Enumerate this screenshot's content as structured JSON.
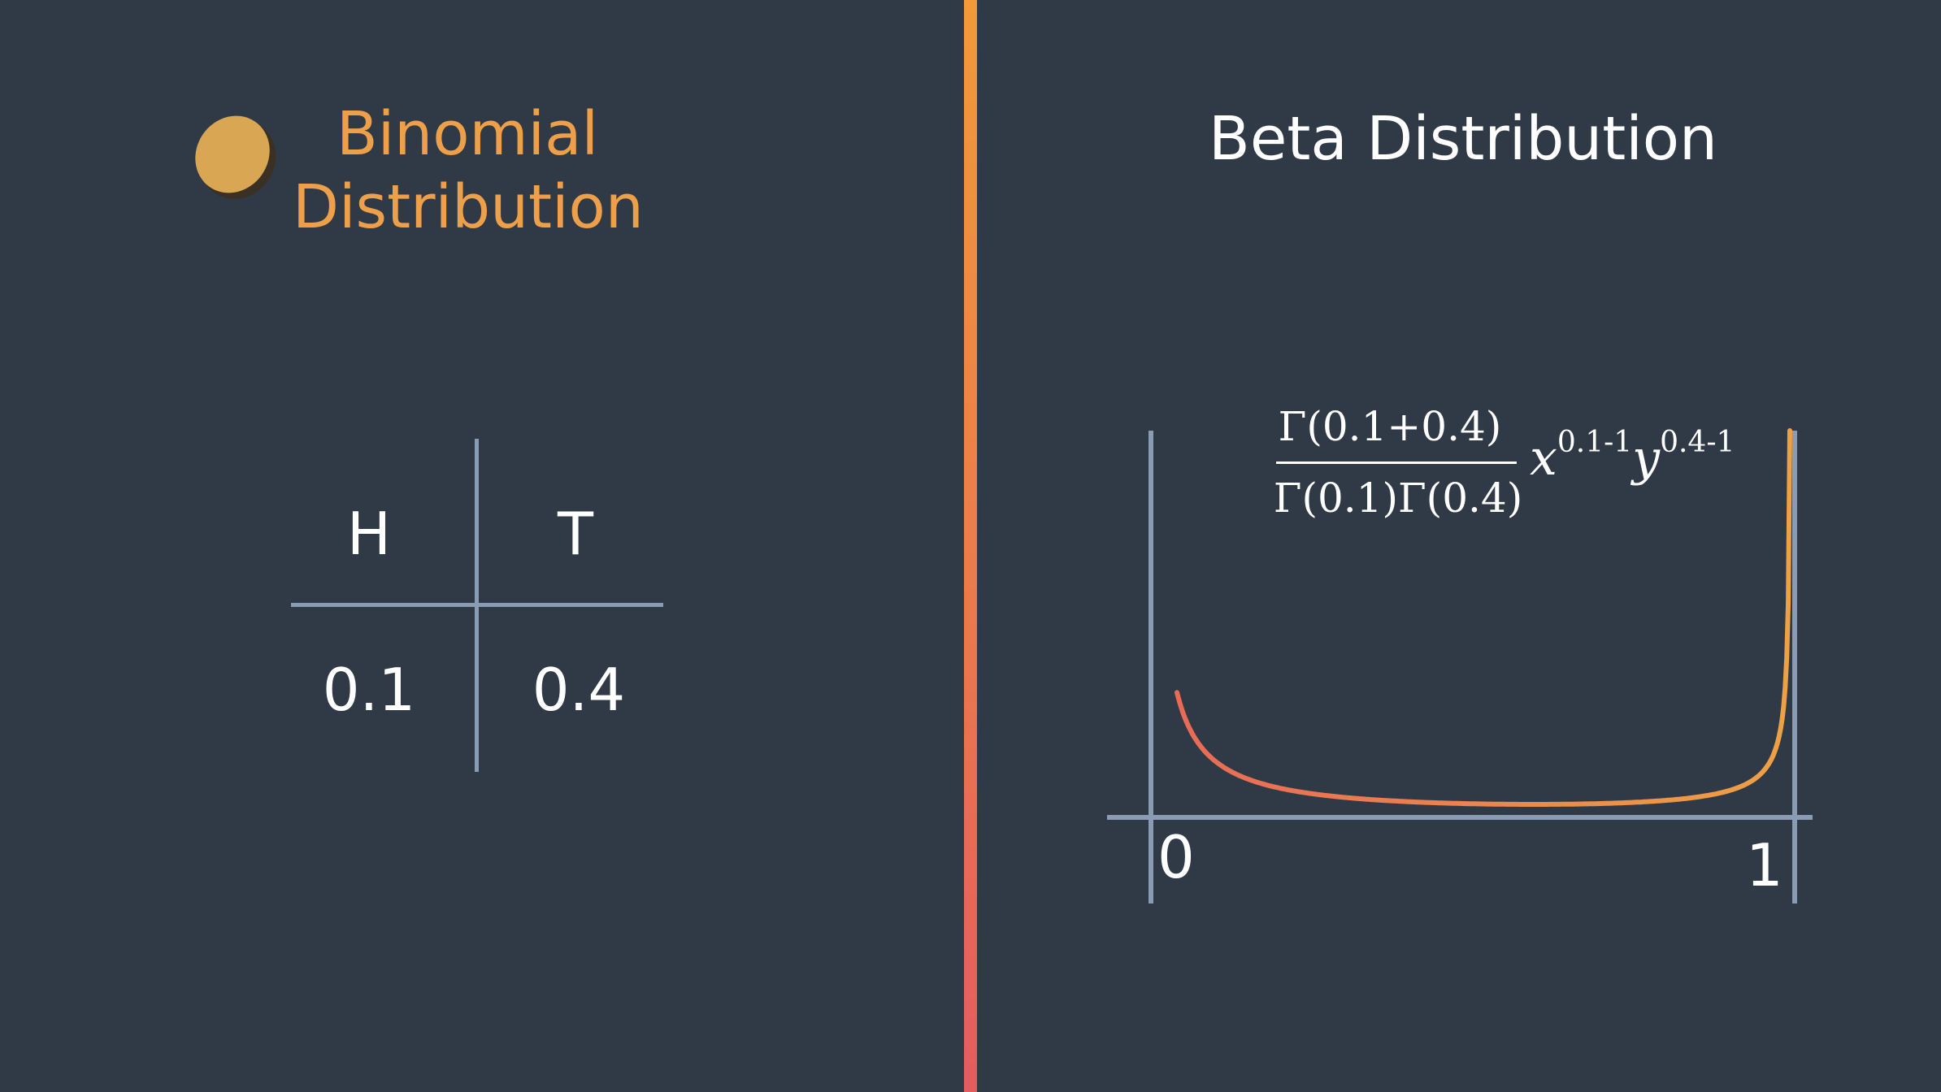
{
  "left_panel": {
    "title_line1": "Binomial",
    "title_line2": "Distribution",
    "table": {
      "headers": [
        "H",
        "T"
      ],
      "values": [
        "0.1",
        "0.4"
      ]
    },
    "coin_icon": "coin-icon"
  },
  "right_panel": {
    "title": "Beta Distribution",
    "formula": {
      "numerator": "Γ(0.1+0.4)",
      "denominator": "Γ(0.1)Γ(0.4)",
      "x_base": "x",
      "x_exponent": "0.1-1",
      "y_base": "y",
      "y_exponent": "0.4-1"
    },
    "axis_ticks": [
      "0",
      "1"
    ]
  },
  "colors": {
    "background": "#303a47",
    "accent_orange": "#eda049",
    "axis": "#8a9cb3",
    "curve_start": "#e86a57",
    "curve_end": "#eea144"
  },
  "chart_data": {
    "type": "line",
    "alpha": 0.1,
    "beta": 0.4,
    "xlim": [
      0,
      1
    ],
    "x_ticks": [
      "0",
      "1"
    ]
  }
}
